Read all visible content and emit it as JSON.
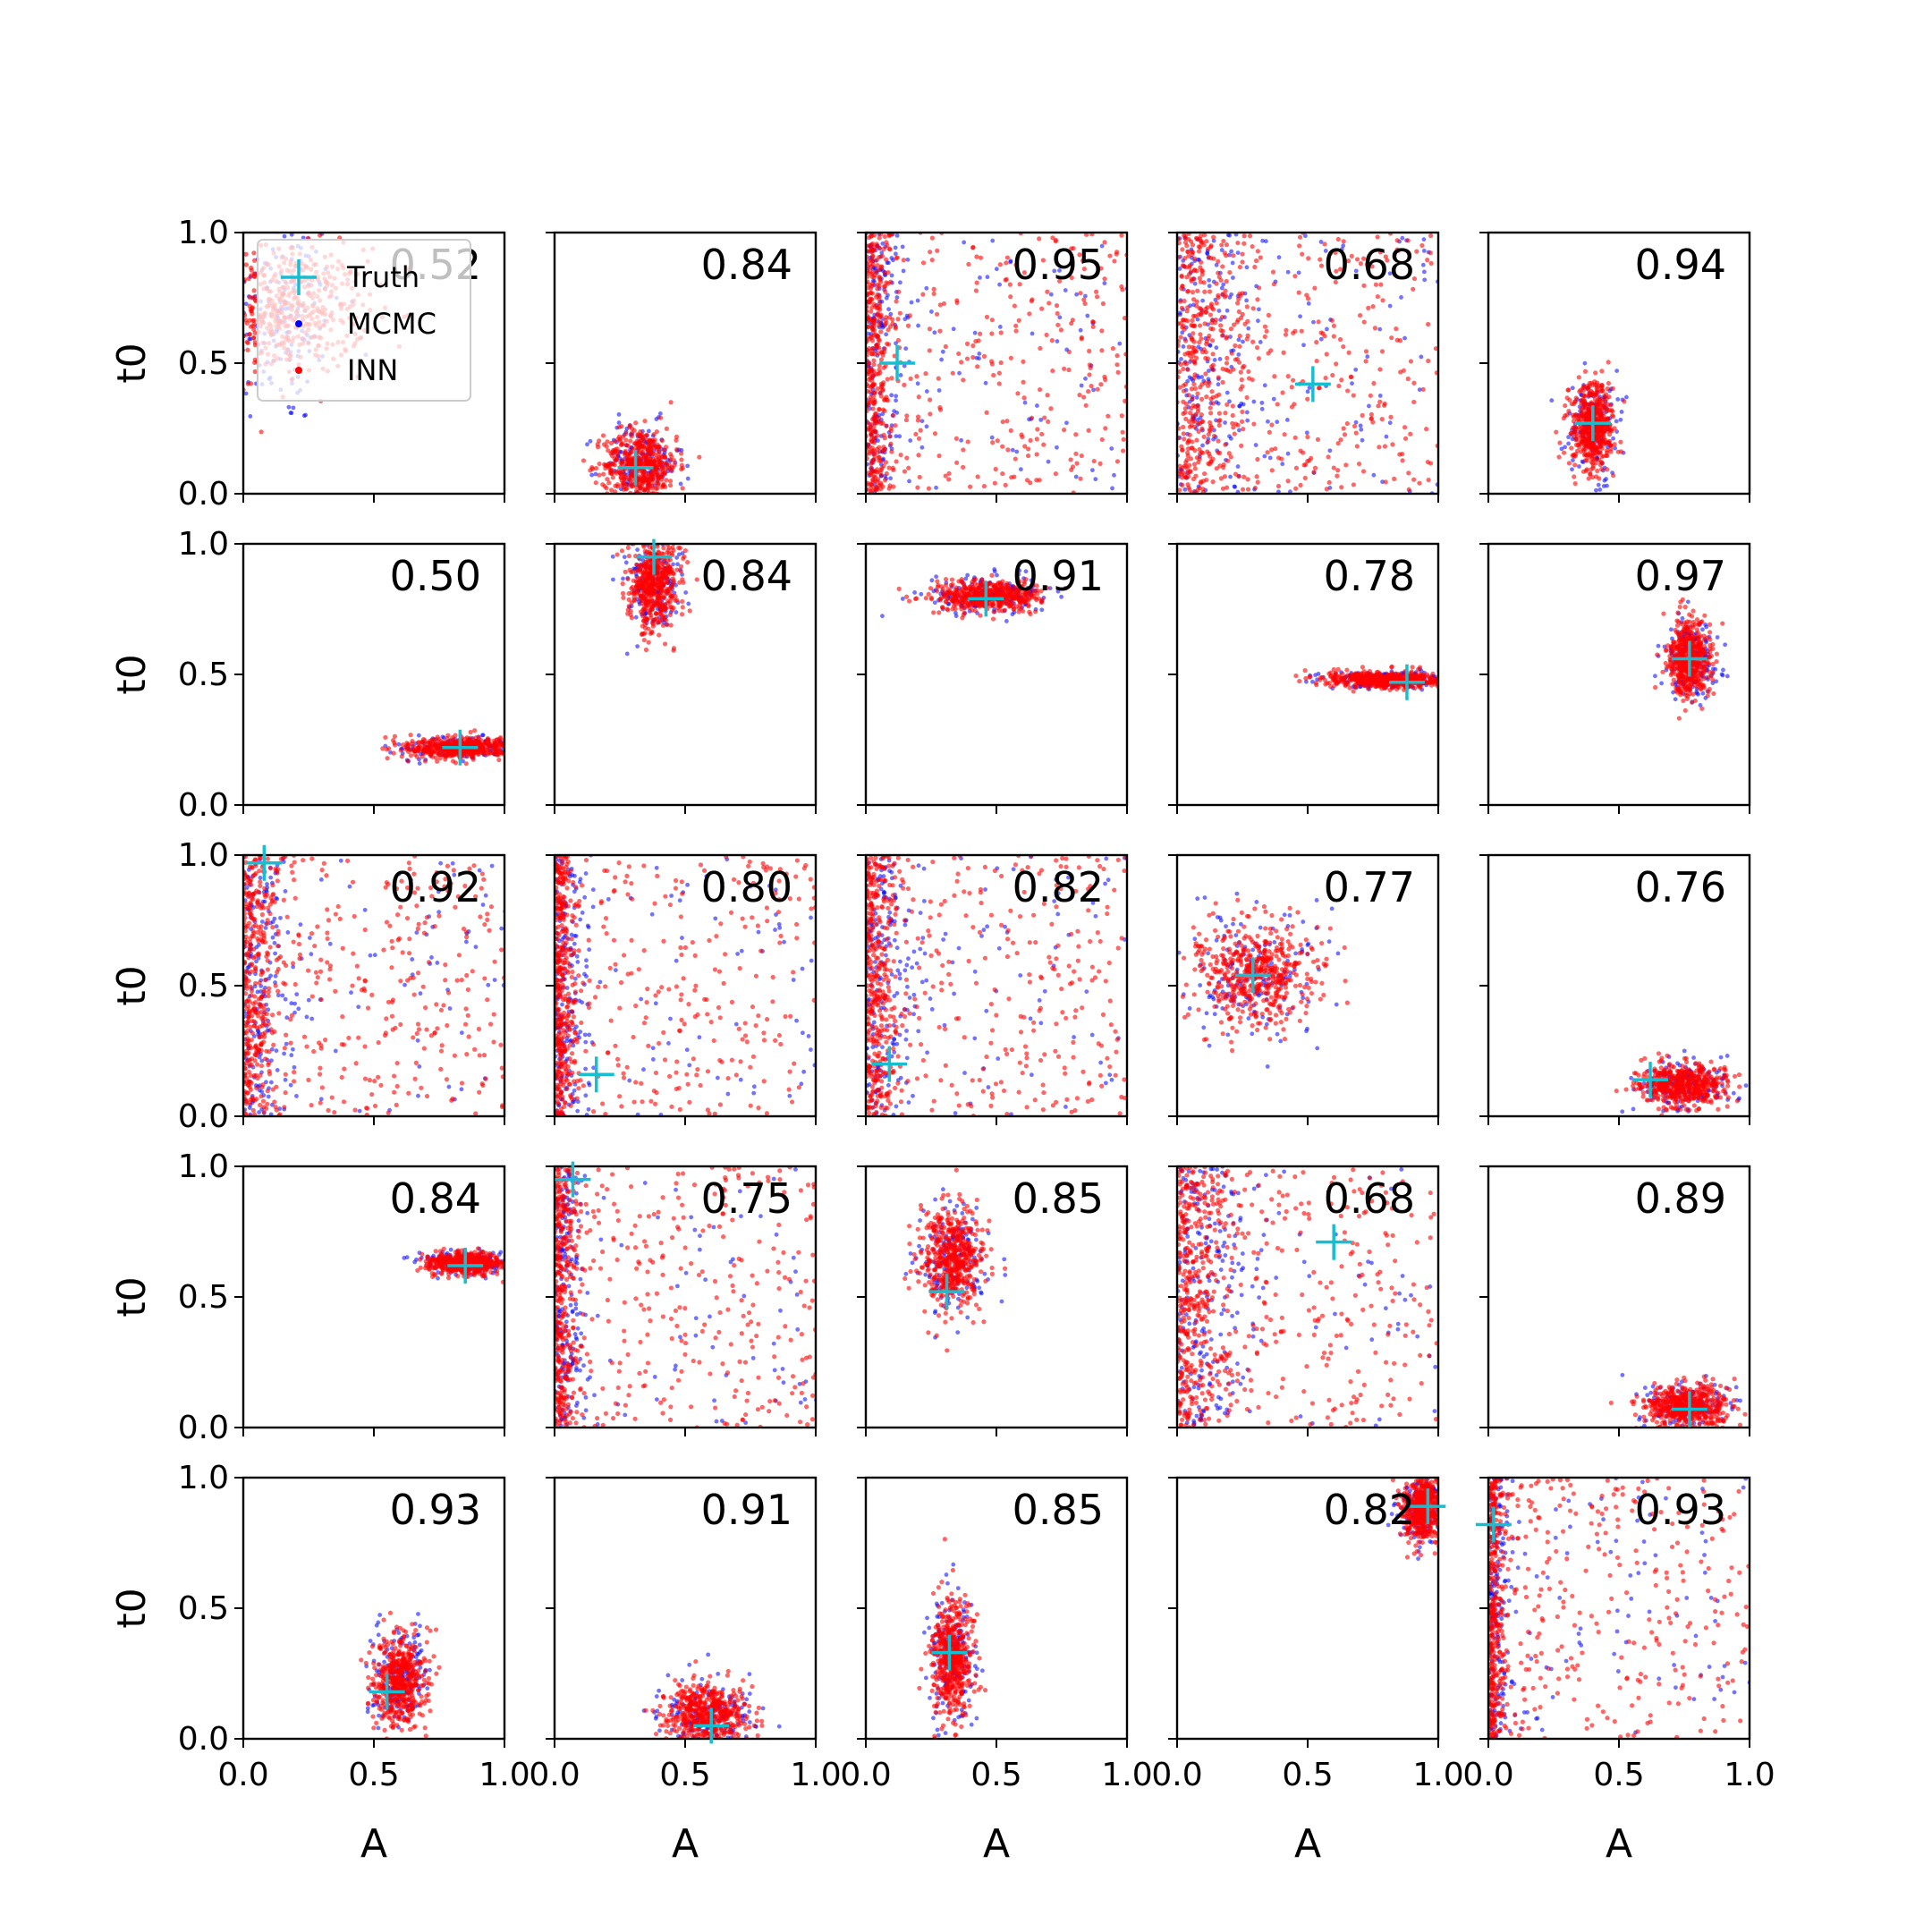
{
  "colors": {
    "truth": "#17becf",
    "mcmc": "#0000ff",
    "inn": "#ff0000"
  },
  "chart_data": {
    "type": "scatter",
    "layout": "5x5 grid of subplots",
    "xlabel": "A",
    "ylabel": "t0",
    "xlim": [
      0,
      1
    ],
    "ylim": [
      0,
      1
    ],
    "x_ticks": [
      "0.0",
      "0.5",
      "1.0"
    ],
    "y_ticks": [
      "0.0",
      "0.5",
      "1.0"
    ],
    "legend": {
      "placement": "upper-left of first panel",
      "entries": [
        "Truth",
        "MCMC",
        "INN"
      ]
    },
    "panels": [
      {
        "row": 0,
        "col": 0,
        "score": "0.52",
        "truth": null
      },
      {
        "row": 0,
        "col": 1,
        "score": "0.84",
        "truth": [
          0.31,
          0.1
        ]
      },
      {
        "row": 0,
        "col": 2,
        "score": "0.95",
        "truth": [
          0.12,
          0.5
        ]
      },
      {
        "row": 0,
        "col": 3,
        "score": "0.68",
        "truth": [
          0.52,
          0.42
        ]
      },
      {
        "row": 0,
        "col": 4,
        "score": "0.94",
        "truth": [
          0.4,
          0.27
        ]
      },
      {
        "row": 1,
        "col": 0,
        "score": "0.50",
        "truth": [
          0.83,
          0.22
        ]
      },
      {
        "row": 1,
        "col": 1,
        "score": "0.84",
        "truth": [
          0.38,
          0.95
        ]
      },
      {
        "row": 1,
        "col": 2,
        "score": "0.91",
        "truth": [
          0.46,
          0.79
        ]
      },
      {
        "row": 1,
        "col": 3,
        "score": "0.78",
        "truth": [
          0.88,
          0.47
        ]
      },
      {
        "row": 1,
        "col": 4,
        "score": "0.97",
        "truth": [
          0.77,
          0.56
        ]
      },
      {
        "row": 2,
        "col": 0,
        "score": "0.92",
        "truth": [
          0.08,
          0.97
        ]
      },
      {
        "row": 2,
        "col": 1,
        "score": "0.80",
        "truth": [
          0.16,
          0.16
        ]
      },
      {
        "row": 2,
        "col": 2,
        "score": "0.82",
        "truth": [
          0.09,
          0.2
        ]
      },
      {
        "row": 2,
        "col": 3,
        "score": "0.77",
        "truth": [
          0.29,
          0.54
        ]
      },
      {
        "row": 2,
        "col": 4,
        "score": "0.76",
        "truth": [
          0.62,
          0.14
        ]
      },
      {
        "row": 3,
        "col": 0,
        "score": "0.84",
        "truth": [
          0.85,
          0.62
        ]
      },
      {
        "row": 3,
        "col": 1,
        "score": "0.75",
        "truth": [
          0.07,
          0.95
        ]
      },
      {
        "row": 3,
        "col": 2,
        "score": "0.85",
        "truth": [
          0.31,
          0.52
        ]
      },
      {
        "row": 3,
        "col": 3,
        "score": "0.68",
        "truth": [
          0.6,
          0.71
        ]
      },
      {
        "row": 3,
        "col": 4,
        "score": "0.89",
        "truth": [
          0.77,
          0.07
        ]
      },
      {
        "row": 4,
        "col": 0,
        "score": "0.93",
        "truth": [
          0.55,
          0.18
        ]
      },
      {
        "row": 4,
        "col": 1,
        "score": "0.91",
        "truth": [
          0.6,
          0.05
        ]
      },
      {
        "row": 4,
        "col": 2,
        "score": "0.85",
        "truth": [
          0.32,
          0.33
        ]
      },
      {
        "row": 4,
        "col": 3,
        "score": "0.82",
        "truth": [
          0.96,
          0.89
        ]
      },
      {
        "row": 4,
        "col": 4,
        "score": "0.93",
        "truth": [
          0.02,
          0.82
        ]
      }
    ]
  }
}
